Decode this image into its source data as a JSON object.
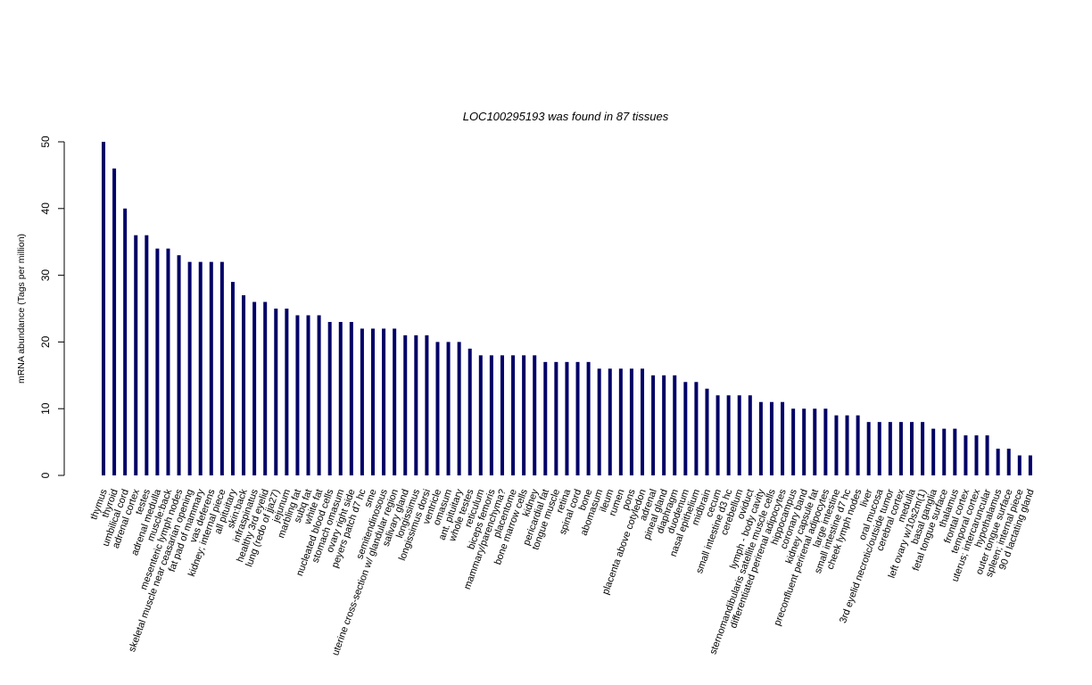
{
  "chart_data": {
    "type": "bar",
    "title": "LOC100295193  was found in  87  tissues",
    "xlabel": "",
    "ylabel": "mRNA abundance (Tags per million)",
    "ylim": [
      0,
      50
    ],
    "yticks": [
      0,
      10,
      20,
      30,
      40,
      50
    ],
    "grid": false,
    "legend": "none",
    "bar_color": "#000066",
    "categories": [
      "thymus",
      "thyroid",
      "umbilical cord",
      "adrenal cortex",
      "testes",
      "adrenal medulla",
      "muscle:back",
      "mesenteric lymph nodes",
      "skeletal muscle near ceasarian opening",
      "fat pad of mammary",
      "vas deferens",
      "kidney; internal piece",
      "all pituitary",
      "skin:back",
      "infraspinatus",
      "healthy 3rd eyelid",
      "lung (redo of jja27)",
      "jejunum",
      "marbling fat",
      "subq fat",
      "white fat",
      "nucleated blood cells",
      "stomach omasum",
      "ovary right side",
      "peyers patch d7 hc",
      "sme",
      "semitendinosous",
      "uterine cross-section w/ glandular region",
      "salivary gland",
      "longissimus",
      "longissimus dorsi",
      "ventricle",
      "omasum",
      "ant. pituitary",
      "whole testes",
      "reticulum",
      "biceps femoris",
      "mammary/parenchyma?",
      "placentome",
      "bone marrow cells",
      "kidney",
      "pericardial fat",
      "tongue muscle",
      "retina",
      "spinal cord",
      "bone",
      "abomasum",
      "ileum",
      "rumen",
      "pons",
      "placenta above cotyledon",
      "adrenal",
      "pineal gland",
      "diaphragm",
      "duodenum",
      "nasal epithelium",
      "midbrain",
      "cecum",
      "small intestine d3 hc",
      "cerebellum",
      "oviduct",
      "lymph - body cavity",
      "sternomandibularis satellite muscle cells",
      "differentiated perirenal adipocytes",
      "hippocampus",
      "coronary band",
      "kidney capsule fat",
      "preconfluent perirenal adipocytes",
      "large intestine",
      "small intestine d7 hc",
      "cheek lymph nodes",
      "liver",
      "oral mucosa",
      "3rd eyelid necrotic/outside tumor",
      "cerebral cortex",
      "medulla",
      "left ovary w/10s2m(1)",
      "basal ganglia",
      "fetal tongue surface",
      "thalamus",
      "frontal cortex",
      "temporal cortex",
      "uterus; intercaruncular",
      "hypothalamus",
      "outer tongue surface",
      "spleen; internal piece",
      "90 d lactating gland"
    ],
    "values": [
      50,
      46,
      40,
      36,
      36,
      34,
      34,
      33,
      32,
      32,
      32,
      32,
      29,
      27,
      26,
      26,
      25,
      25,
      24,
      24,
      24,
      23,
      23,
      23,
      22,
      22,
      22,
      22,
      21,
      21,
      21,
      20,
      20,
      20,
      19,
      18,
      18,
      18,
      18,
      18,
      18,
      17,
      17,
      17,
      17,
      17,
      16,
      16,
      16,
      16,
      16,
      15,
      15,
      15,
      14,
      14,
      13,
      12,
      12,
      12,
      12,
      11,
      11,
      11,
      10,
      10,
      10,
      10,
      9,
      9,
      9,
      8,
      8,
      8,
      8,
      8,
      8,
      7,
      7,
      7,
      6,
      6,
      6,
      4,
      4,
      3,
      3
    ]
  }
}
